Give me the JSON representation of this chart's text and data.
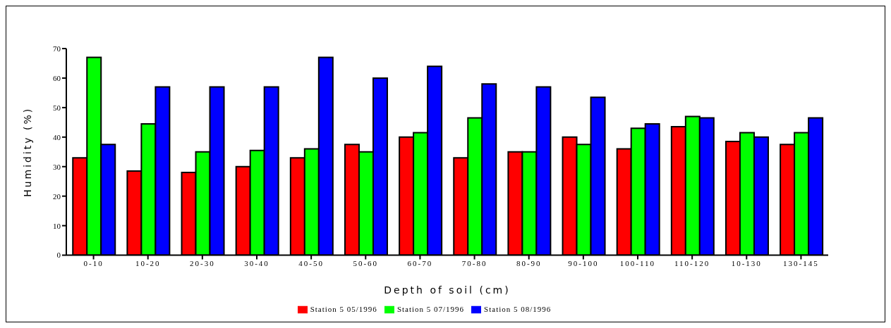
{
  "chart_data": {
    "type": "bar",
    "xlabel": "Depth of soil (cm)",
    "ylabel": "Humidity (%)",
    "categories": [
      "0-10",
      "10-20",
      "20-30",
      "30-40",
      "40-50",
      "50-60",
      "60-70",
      "70-80",
      "80-90",
      "90-100",
      "100-110",
      "110-120",
      "10-130",
      "130-145"
    ],
    "series": [
      {
        "name": "Station 5 05/1996",
        "color": "#ff0000",
        "values": [
          33,
          28.5,
          28,
          30,
          33,
          37.5,
          40,
          33,
          35,
          40,
          36,
          43.5,
          38.5,
          37.5
        ]
      },
      {
        "name": "Station 5 07/1996",
        "color": "#00ff00",
        "values": [
          67,
          44.5,
          35,
          35.5,
          36,
          35,
          41.5,
          46.5,
          35,
          37.5,
          43,
          47,
          41.5,
          41.5
        ]
      },
      {
        "name": "Station 5 08/1996",
        "color": "#0000ff",
        "values": [
          37.5,
          57,
          57,
          57,
          67,
          60,
          64,
          58,
          57,
          53.5,
          44.5,
          46.5,
          40,
          46.5
        ]
      }
    ],
    "ylim": [
      0,
      70
    ],
    "yticks": [
      0,
      10,
      20,
      30,
      40,
      50,
      60,
      70
    ],
    "grid": false,
    "legend": "bottom"
  }
}
